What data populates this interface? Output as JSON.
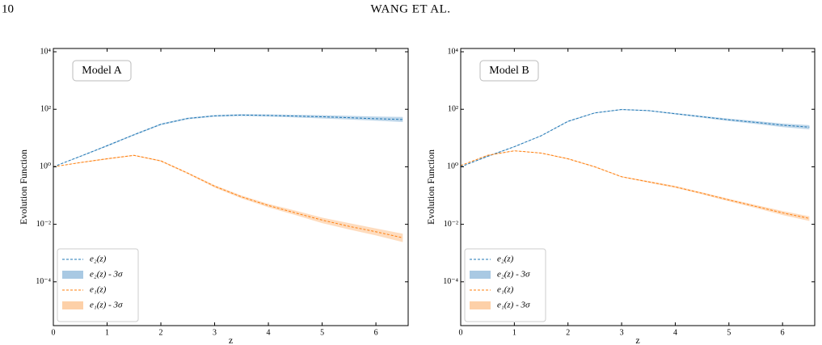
{
  "header": {
    "page_number": "10",
    "running_title": "WANG ET AL."
  },
  "chart_data": [
    {
      "type": "line",
      "annotation": "Model A",
      "xlabel": "z",
      "ylabel": "Evolution Function",
      "x": [
        0,
        0.5,
        1,
        1.5,
        2,
        2.5,
        3,
        3.5,
        4,
        4.5,
        5,
        5.5,
        6,
        6.5
      ],
      "xlim": [
        0,
        6.6
      ],
      "xticks": [
        0,
        1,
        2,
        3,
        4,
        5,
        6
      ],
      "ylim": [
        3e-06,
        13000
      ],
      "log_scale": true,
      "yticks": [
        {
          "value": 0.0001,
          "label": "10⁻⁴"
        },
        {
          "value": 0.01,
          "label": "10⁻²"
        },
        {
          "value": 1,
          "label": "10⁰"
        },
        {
          "value": 100,
          "label": "10²"
        },
        {
          "value": 10000,
          "label": "10⁴"
        }
      ],
      "legend": "lower left",
      "series": [
        {
          "name": "e₂(z)",
          "style": "line",
          "color": "#1f77b4",
          "values": [
            1,
            2.3,
            5.4,
            13,
            30,
            48,
            59,
            63,
            61,
            58,
            55,
            51,
            47,
            44
          ]
        },
        {
          "name": "e₂(z) - 3σ",
          "style": "band",
          "color": "#a9c9e3",
          "low": [
            1,
            2.2,
            5.1,
            12.2,
            28,
            45,
            55,
            58,
            56,
            52,
            48,
            44,
            40,
            36
          ],
          "high": [
            1,
            2.4,
            5.7,
            13.8,
            32,
            51,
            63,
            68,
            66,
            64,
            62,
            59,
            56,
            54
          ]
        },
        {
          "name": "e₁(z)",
          "style": "line",
          "color": "#ff7f0e",
          "values": [
            1,
            1.4,
            1.9,
            2.5,
            1.6,
            0.6,
            0.21,
            0.09,
            0.045,
            0.025,
            0.014,
            0.0085,
            0.0055,
            0.0034
          ]
        },
        {
          "name": "e₁(z) - 3σ",
          "style": "band",
          "color": "#fdd0a8",
          "low": [
            1,
            1.35,
            1.8,
            2.4,
            1.5,
            0.56,
            0.19,
            0.08,
            0.039,
            0.021,
            0.011,
            0.0066,
            0.0041,
            0.0024
          ],
          "high": [
            1,
            1.45,
            2.0,
            2.6,
            1.7,
            0.64,
            0.23,
            0.1,
            0.051,
            0.03,
            0.017,
            0.011,
            0.0072,
            0.0047
          ]
        }
      ]
    },
    {
      "type": "line",
      "annotation": "Model B",
      "xlabel": "z",
      "ylabel": "Evolution Function",
      "x": [
        0,
        0.5,
        1,
        1.5,
        2,
        2.5,
        3,
        3.5,
        4,
        4.5,
        5,
        5.5,
        6,
        6.5
      ],
      "xlim": [
        0,
        6.6
      ],
      "xticks": [
        0,
        1,
        2,
        3,
        4,
        5,
        6
      ],
      "ylim": [
        3e-06,
        13000
      ],
      "log_scale": true,
      "yticks": [
        {
          "value": 0.0001,
          "label": "10⁻⁴"
        },
        {
          "value": 0.01,
          "label": "10⁻²"
        },
        {
          "value": 1,
          "label": "10⁰"
        },
        {
          "value": 100,
          "label": "10²"
        },
        {
          "value": 10000,
          "label": "10⁴"
        }
      ],
      "legend": "lower left",
      "series": [
        {
          "name": "e₂(z)",
          "style": "line",
          "color": "#1f77b4",
          "values": [
            1,
            2.3,
            5,
            12,
            38,
            75,
            98,
            90,
            70,
            55,
            43,
            35,
            28,
            24
          ]
        },
        {
          "name": "e₂(z) - 3σ",
          "style": "band",
          "color": "#a9c9e3",
          "low": [
            1,
            2.2,
            4.8,
            11.5,
            36,
            72,
            94,
            86,
            66,
            51,
            39,
            31,
            24,
            20
          ],
          "high": [
            1,
            2.4,
            5.2,
            12.5,
            40,
            78,
            102,
            94,
            74,
            59,
            47,
            39,
            32,
            28
          ]
        },
        {
          "name": "e₁(z)",
          "style": "line",
          "color": "#ff7f0e",
          "values": [
            1.1,
            2.5,
            3.6,
            3.0,
            1.9,
            1.0,
            0.45,
            0.3,
            0.2,
            0.12,
            0.07,
            0.042,
            0.025,
            0.016
          ]
        },
        {
          "name": "e₁(z) - 3σ",
          "style": "band",
          "color": "#fdd0a8",
          "low": [
            1.1,
            2.4,
            3.5,
            2.9,
            1.8,
            0.95,
            0.43,
            0.28,
            0.185,
            0.11,
            0.063,
            0.037,
            0.021,
            0.013
          ],
          "high": [
            1.1,
            2.6,
            3.7,
            3.1,
            2.0,
            1.05,
            0.47,
            0.32,
            0.215,
            0.13,
            0.077,
            0.047,
            0.029,
            0.019
          ]
        }
      ]
    }
  ]
}
